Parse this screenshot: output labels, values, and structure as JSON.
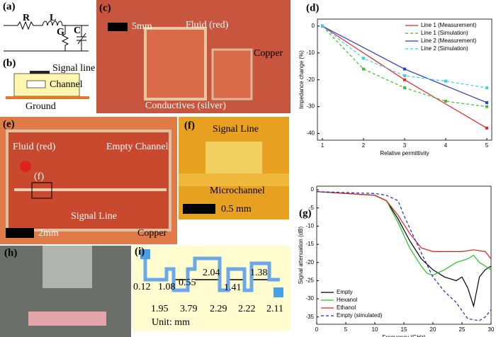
{
  "figure": {
    "panels": {
      "a": {
        "label": "(a)",
        "texts": [
          "R",
          "L",
          "G",
          "C"
        ]
      },
      "b": {
        "label": "(b)",
        "texts": [
          "Signal line",
          "Channel",
          "Ground"
        ]
      },
      "c": {
        "label": "(c)",
        "texts": [
          "5mm",
          "Fluid (red)",
          "Copper",
          "Conductives (silver)"
        ]
      },
      "e": {
        "label": "(e)",
        "texts": [
          "Fluid (red)",
          "Empty Channel",
          "(f)",
          "Signal Line",
          "2mm",
          "Copper"
        ]
      },
      "f": {
        "label": "(f)",
        "texts": [
          "Signal Line",
          "Microchannel",
          "0.5 mm"
        ]
      },
      "h": {
        "label": "(h)"
      },
      "i": {
        "label": "(i)",
        "dimensions": [
          "0.12",
          "1.08",
          "0.55",
          "2.04",
          "1.41",
          "1.38",
          "1.95",
          "3.79",
          "2.29",
          "2.22",
          "2.11"
        ],
        "unit": "Unit: mm"
      }
    }
  },
  "chart_data": [
    {
      "type": "line",
      "panel_label": "(d)",
      "xlabel": "Relative permittivity",
      "ylabel": "Impedance change (%)",
      "xlim": [
        0.88,
        5.12
      ],
      "ylim": [
        -42.5,
        2.6
      ],
      "xticks": [
        1,
        2,
        3,
        4,
        5
      ],
      "yticks": [
        0,
        -10,
        -20,
        -30,
        -40
      ],
      "legend": "upper right",
      "series": [
        {
          "name": "Line 1 (Measurement)",
          "color": "#e8262a",
          "dash": false,
          "x": [
            1,
            3,
            5
          ],
          "values": [
            0,
            -20,
            -38
          ]
        },
        {
          "name": "Line 1 (Simulation)",
          "color": "#3fbf2f",
          "dash": true,
          "x": [
            1,
            2,
            3,
            4,
            5
          ],
          "values": [
            0,
            -16,
            -23,
            -28,
            -30
          ]
        },
        {
          "name": "Line 2 (Measurement)",
          "color": "#2b3bd9",
          "dash": false,
          "x": [
            1,
            3,
            5
          ],
          "values": [
            0,
            -16,
            -28.5
          ]
        },
        {
          "name": "Line 2 (Simulation)",
          "color": "#33d6e0",
          "dash": true,
          "x": [
            1,
            2,
            3,
            4,
            5
          ],
          "values": [
            0,
            -12,
            -18.5,
            -20.5,
            -23
          ]
        }
      ]
    },
    {
      "type": "line",
      "panel_label": "(g)",
      "xlabel": "Frequency (GHz)",
      "ylabel": "Signal attenuation (dB)",
      "xlim": [
        0,
        30
      ],
      "ylim": [
        -37,
        1
      ],
      "xticks": [
        0,
        5,
        10,
        15,
        20,
        25,
        30
      ],
      "yticks": [
        0,
        -5,
        -10,
        -15,
        -20,
        -25,
        -30,
        -35
      ],
      "legend": "lower left",
      "series": [
        {
          "name": "Empty",
          "color": "#000000",
          "dash": false,
          "x": [
            0,
            5,
            10,
            12,
            14,
            16,
            18,
            20,
            22,
            24,
            25,
            26,
            27,
            27.5,
            28,
            29,
            30
          ],
          "values": [
            -0.5,
            -1,
            -1.5,
            -3,
            -8,
            -14,
            -19,
            -22,
            -24,
            -25,
            -24,
            -27,
            -32,
            -28,
            -24,
            -22,
            -21
          ]
        },
        {
          "name": "Hexanol",
          "color": "#22c322",
          "dash": false,
          "x": [
            0,
            10,
            12,
            14,
            16,
            18,
            19,
            20,
            22,
            24,
            26,
            27,
            28,
            29,
            30
          ],
          "values": [
            -0.5,
            -1.5,
            -3,
            -9,
            -16,
            -21,
            -23,
            -23.5,
            -22,
            -20,
            -19,
            -18,
            -20,
            -21,
            -22
          ]
        },
        {
          "name": "Ethanol",
          "color": "#e02020",
          "dash": false,
          "x": [
            0,
            10,
            12,
            14,
            16,
            18,
            20,
            22,
            25,
            27,
            29,
            30
          ],
          "values": [
            -0.5,
            -1.5,
            -3,
            -7,
            -12,
            -16,
            -17,
            -17,
            -17,
            -16.5,
            -17,
            -19
          ]
        },
        {
          "name": "Empty (simulated)",
          "color": "#2020e0",
          "dash": true,
          "x": [
            0,
            10,
            12,
            14,
            15,
            17,
            20,
            22,
            24,
            26,
            28,
            29,
            30
          ],
          "values": [
            -0.5,
            -1,
            -1.5,
            -3,
            -7,
            -14,
            -24,
            -28,
            -31,
            -35.5,
            -36,
            -35,
            -33
          ]
        }
      ]
    }
  ]
}
